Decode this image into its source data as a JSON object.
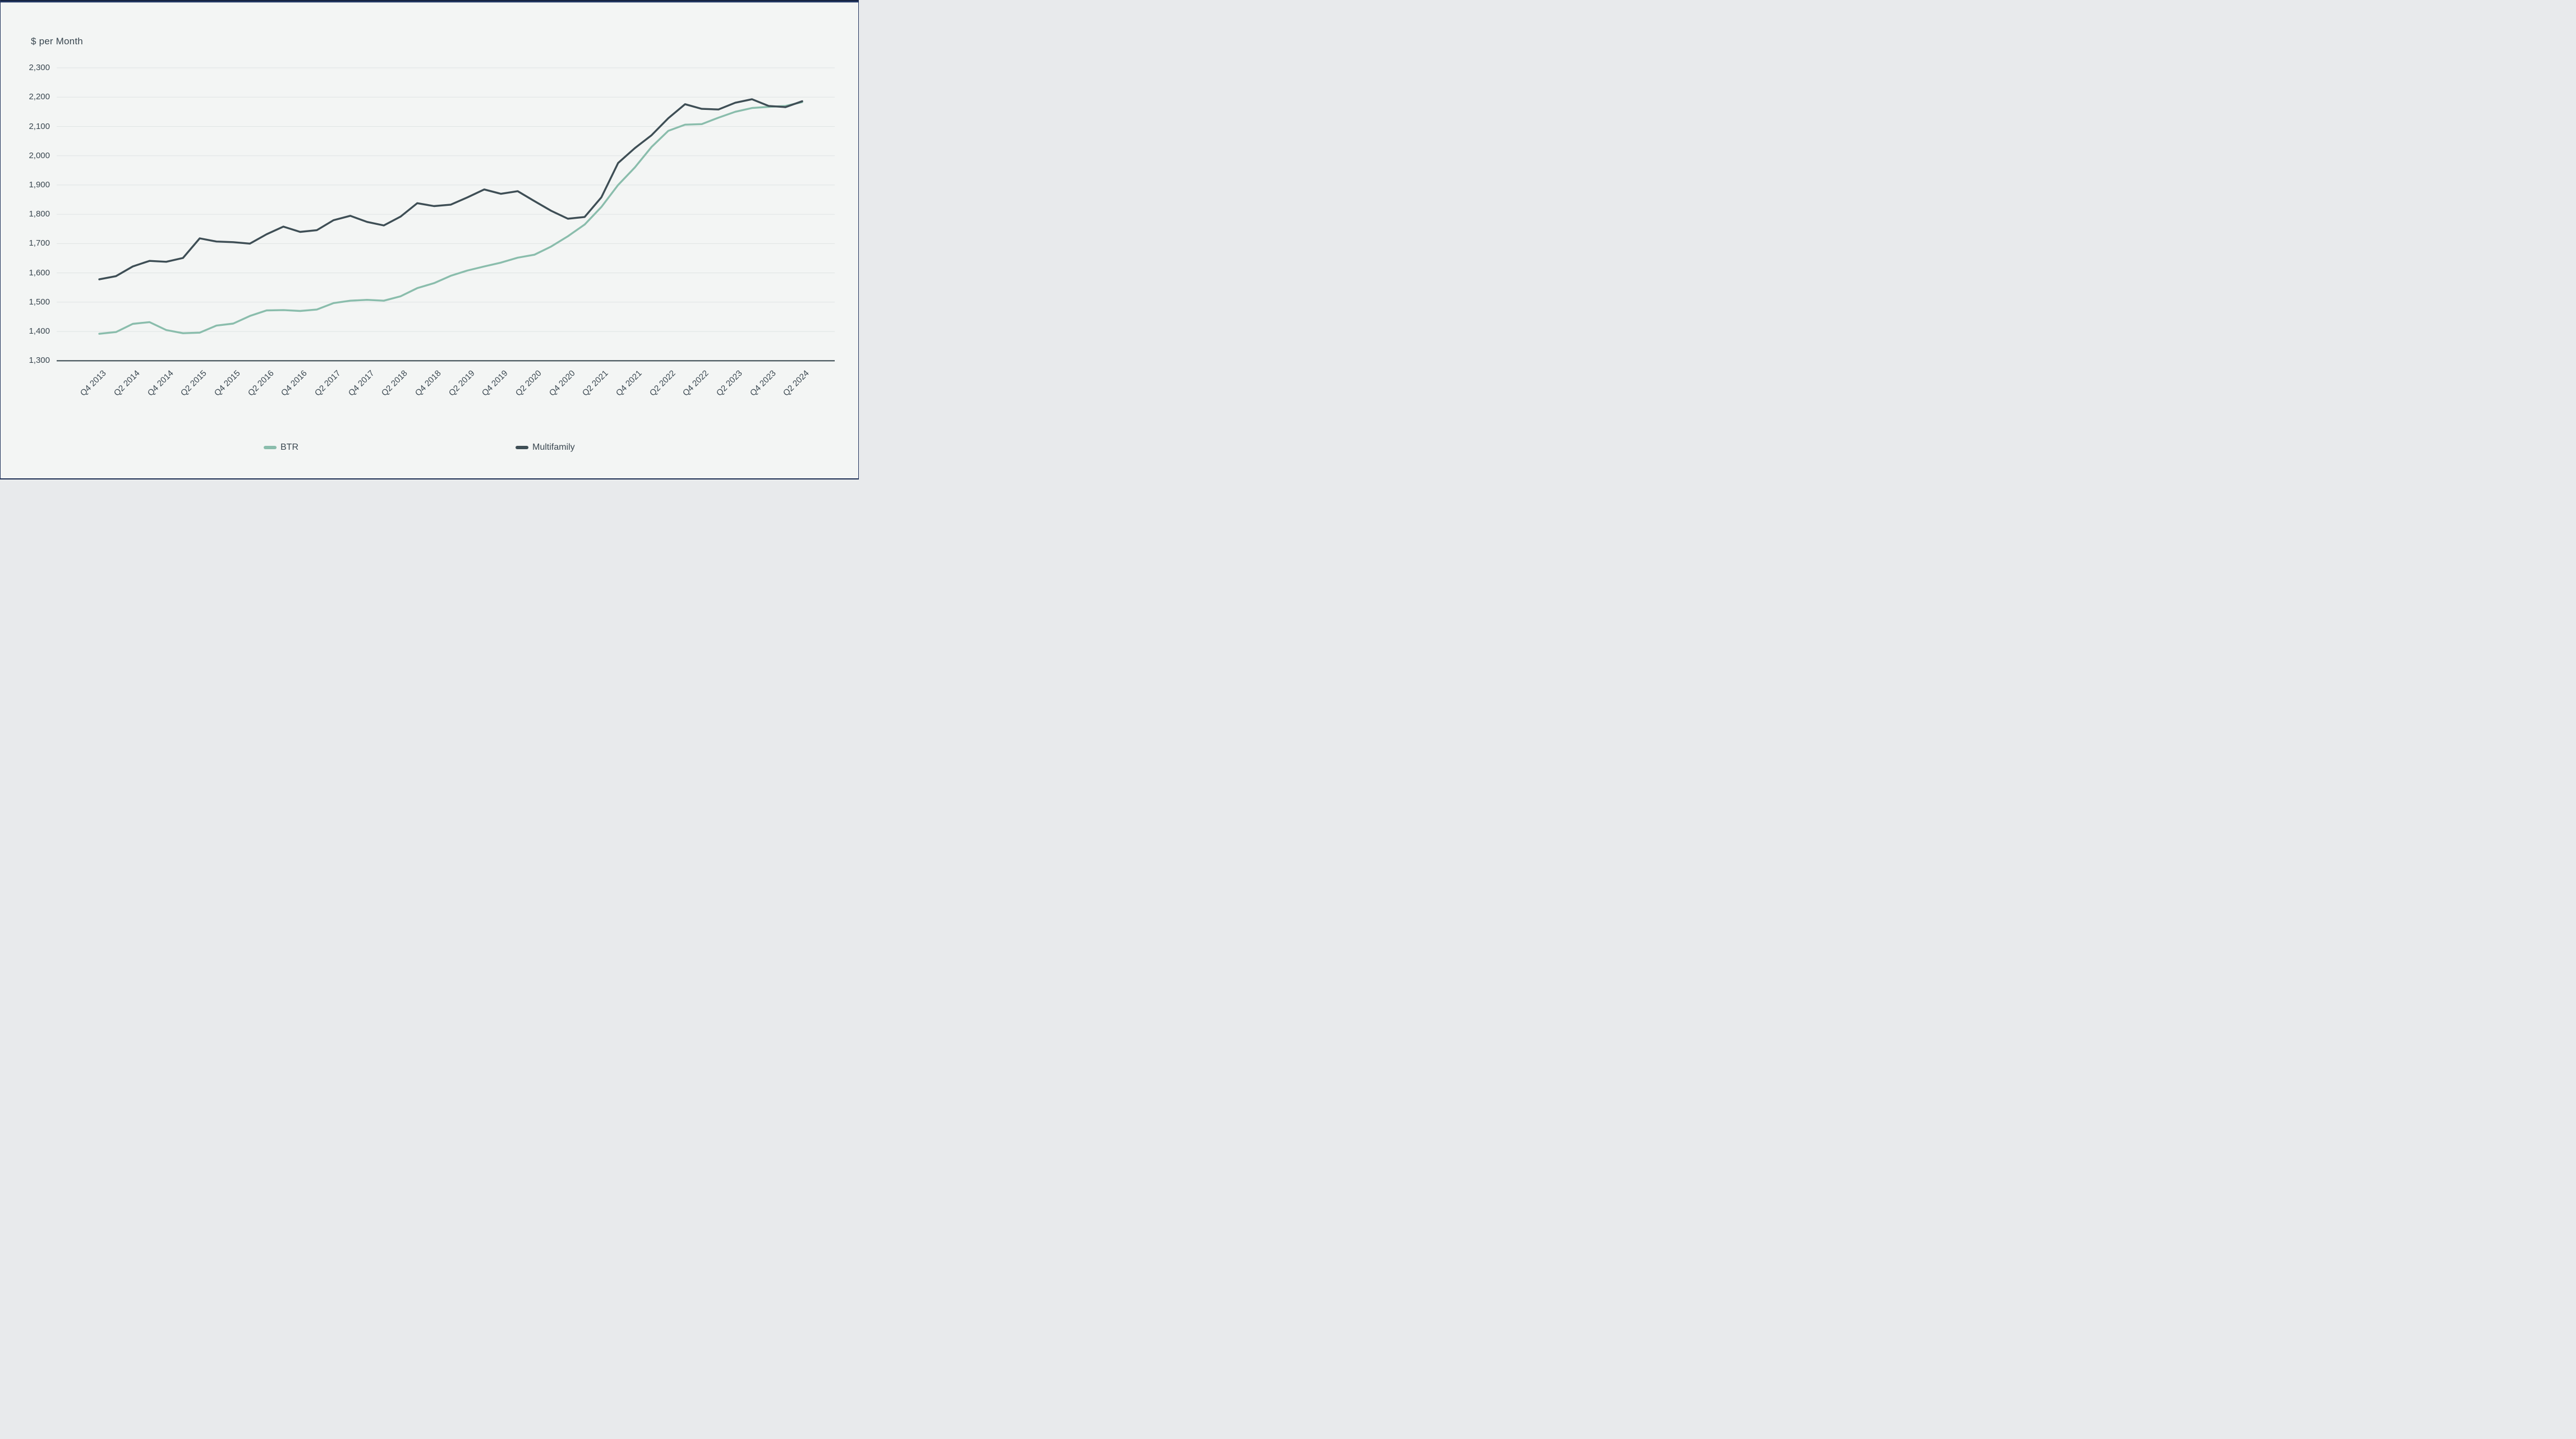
{
  "window": {
    "top_bar_color": "#20345f"
  },
  "chart": {
    "title": "$ per Month",
    "background_color": "#f3f5f4",
    "grid_color": "#dfe4e3",
    "axis_line_color": "#3f4e55",
    "text_color": "#3a4750",
    "y_tick_labels": [
      "2,300",
      "2,200",
      "2,100",
      "2,000",
      "1,900",
      "1,800",
      "1,700",
      "1,600",
      "1,500",
      "1,400",
      "1,300"
    ],
    "x_tick_labels": [
      "Q4 2013",
      "Q2 2014",
      "Q4 2014",
      "Q2 2015",
      "Q4 2015",
      "Q2 2016",
      "Q4 2016",
      "Q2 2017",
      "Q4 2017",
      "Q2 2018",
      "Q4 2018",
      "Q2 2019",
      "Q4 2019",
      "Q2 2020",
      "Q4 2020",
      "Q2 2021",
      "Q4 2021",
      "Q2 2022",
      "Q4 2022",
      "Q2 2023",
      "Q4 2023",
      "Q2 2024"
    ],
    "legend": [
      {
        "label": "BTR",
        "color": "#8abdac"
      },
      {
        "label": "Multifamily",
        "color": "#3e4e55"
      }
    ]
  },
  "chart_data": {
    "type": "line",
    "title": "$ per Month",
    "xlabel": "",
    "ylabel": "$ per Month",
    "ylim": [
      1300,
      2300
    ],
    "y_step": 100,
    "grid": "horizontal",
    "legend_position": "bottom",
    "x_labels_every": 2,
    "x": [
      "Q4 2013",
      "Q1 2014",
      "Q2 2014",
      "Q3 2014",
      "Q4 2014",
      "Q1 2015",
      "Q2 2015",
      "Q3 2015",
      "Q4 2015",
      "Q1 2016",
      "Q2 2016",
      "Q3 2016",
      "Q4 2016",
      "Q1 2017",
      "Q2 2017",
      "Q3 2017",
      "Q4 2017",
      "Q1 2018",
      "Q2 2018",
      "Q3 2018",
      "Q4 2018",
      "Q1 2019",
      "Q2 2019",
      "Q3 2019",
      "Q4 2019",
      "Q1 2020",
      "Q2 2020",
      "Q3 2020",
      "Q4 2020",
      "Q1 2021",
      "Q2 2021",
      "Q3 2021",
      "Q4 2021",
      "Q1 2022",
      "Q2 2022",
      "Q3 2022",
      "Q4 2022",
      "Q1 2023",
      "Q2 2023",
      "Q3 2023",
      "Q4 2023",
      "Q1 2024",
      "Q2 2024"
    ],
    "series": [
      {
        "name": "BTR",
        "color": "#8abdac",
        "values": [
          1392,
          1398,
          1426,
          1432,
          1405,
          1394,
          1396,
          1420,
          1427,
          1453,
          1472,
          1473,
          1470,
          1475,
          1497,
          1505,
          1508,
          1505,
          1520,
          1548,
          1565,
          1590,
          1608,
          1622,
          1635,
          1652,
          1662,
          1690,
          1725,
          1765,
          1825,
          1900,
          1960,
          2030,
          2085,
          2106,
          2108,
          2130,
          2150,
          2163,
          2167,
          2170,
          2183
        ]
      },
      {
        "name": "Multifamily",
        "color": "#3e4e55",
        "values": [
          1578,
          1589,
          1622,
          1641,
          1638,
          1651,
          1718,
          1707,
          1705,
          1700,
          1732,
          1758,
          1740,
          1746,
          1780,
          1795,
          1774,
          1762,
          1792,
          1838,
          1828,
          1833,
          1858,
          1885,
          1870,
          1879,
          1845,
          1812,
          1785,
          1791,
          1858,
          1975,
          2026,
          2070,
          2128,
          2176,
          2160,
          2158,
          2181,
          2193,
          2170,
          2166,
          2186
        ]
      }
    ]
  }
}
